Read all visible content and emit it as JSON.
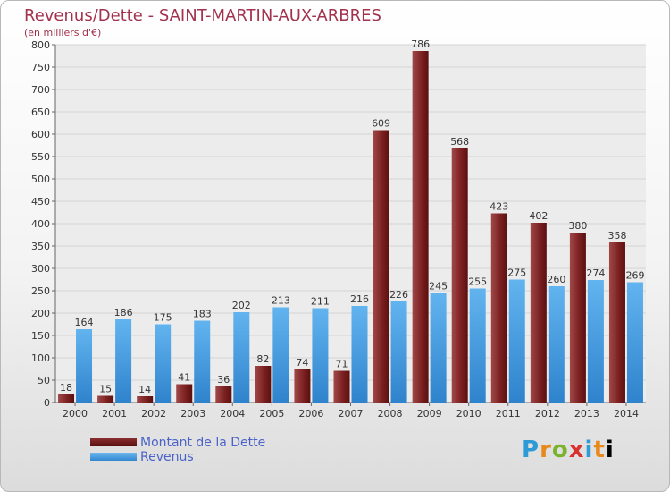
{
  "chart_data": {
    "type": "bar",
    "title": "Revenus/Dette - SAINT-MARTIN-AUX-ARBRES",
    "subtitle": "(en milliers d'€)",
    "categories": [
      "2000",
      "2001",
      "2002",
      "2003",
      "2004",
      "2005",
      "2006",
      "2007",
      "2008",
      "2009",
      "2010",
      "2011",
      "2012",
      "2013",
      "2014"
    ],
    "series": [
      {
        "name": "Montant de la Dette",
        "color": "#6b1a1a",
        "values": [
          18,
          15,
          14,
          41,
          36,
          82,
          74,
          71,
          609,
          786,
          568,
          423,
          402,
          380,
          358
        ]
      },
      {
        "name": "Revenus",
        "color": "#3e95dc",
        "values": [
          164,
          186,
          175,
          183,
          202,
          213,
          211,
          216,
          226,
          245,
          255,
          275,
          260,
          274,
          269
        ]
      }
    ],
    "ylim": [
      0,
      800
    ],
    "yticks": [
      0,
      50,
      100,
      150,
      200,
      250,
      300,
      350,
      400,
      450,
      500,
      550,
      600,
      650,
      700,
      750,
      800
    ],
    "grid": true,
    "legend_position": "bottom-left"
  },
  "branding": {
    "logo_text": "Proxiti"
  }
}
